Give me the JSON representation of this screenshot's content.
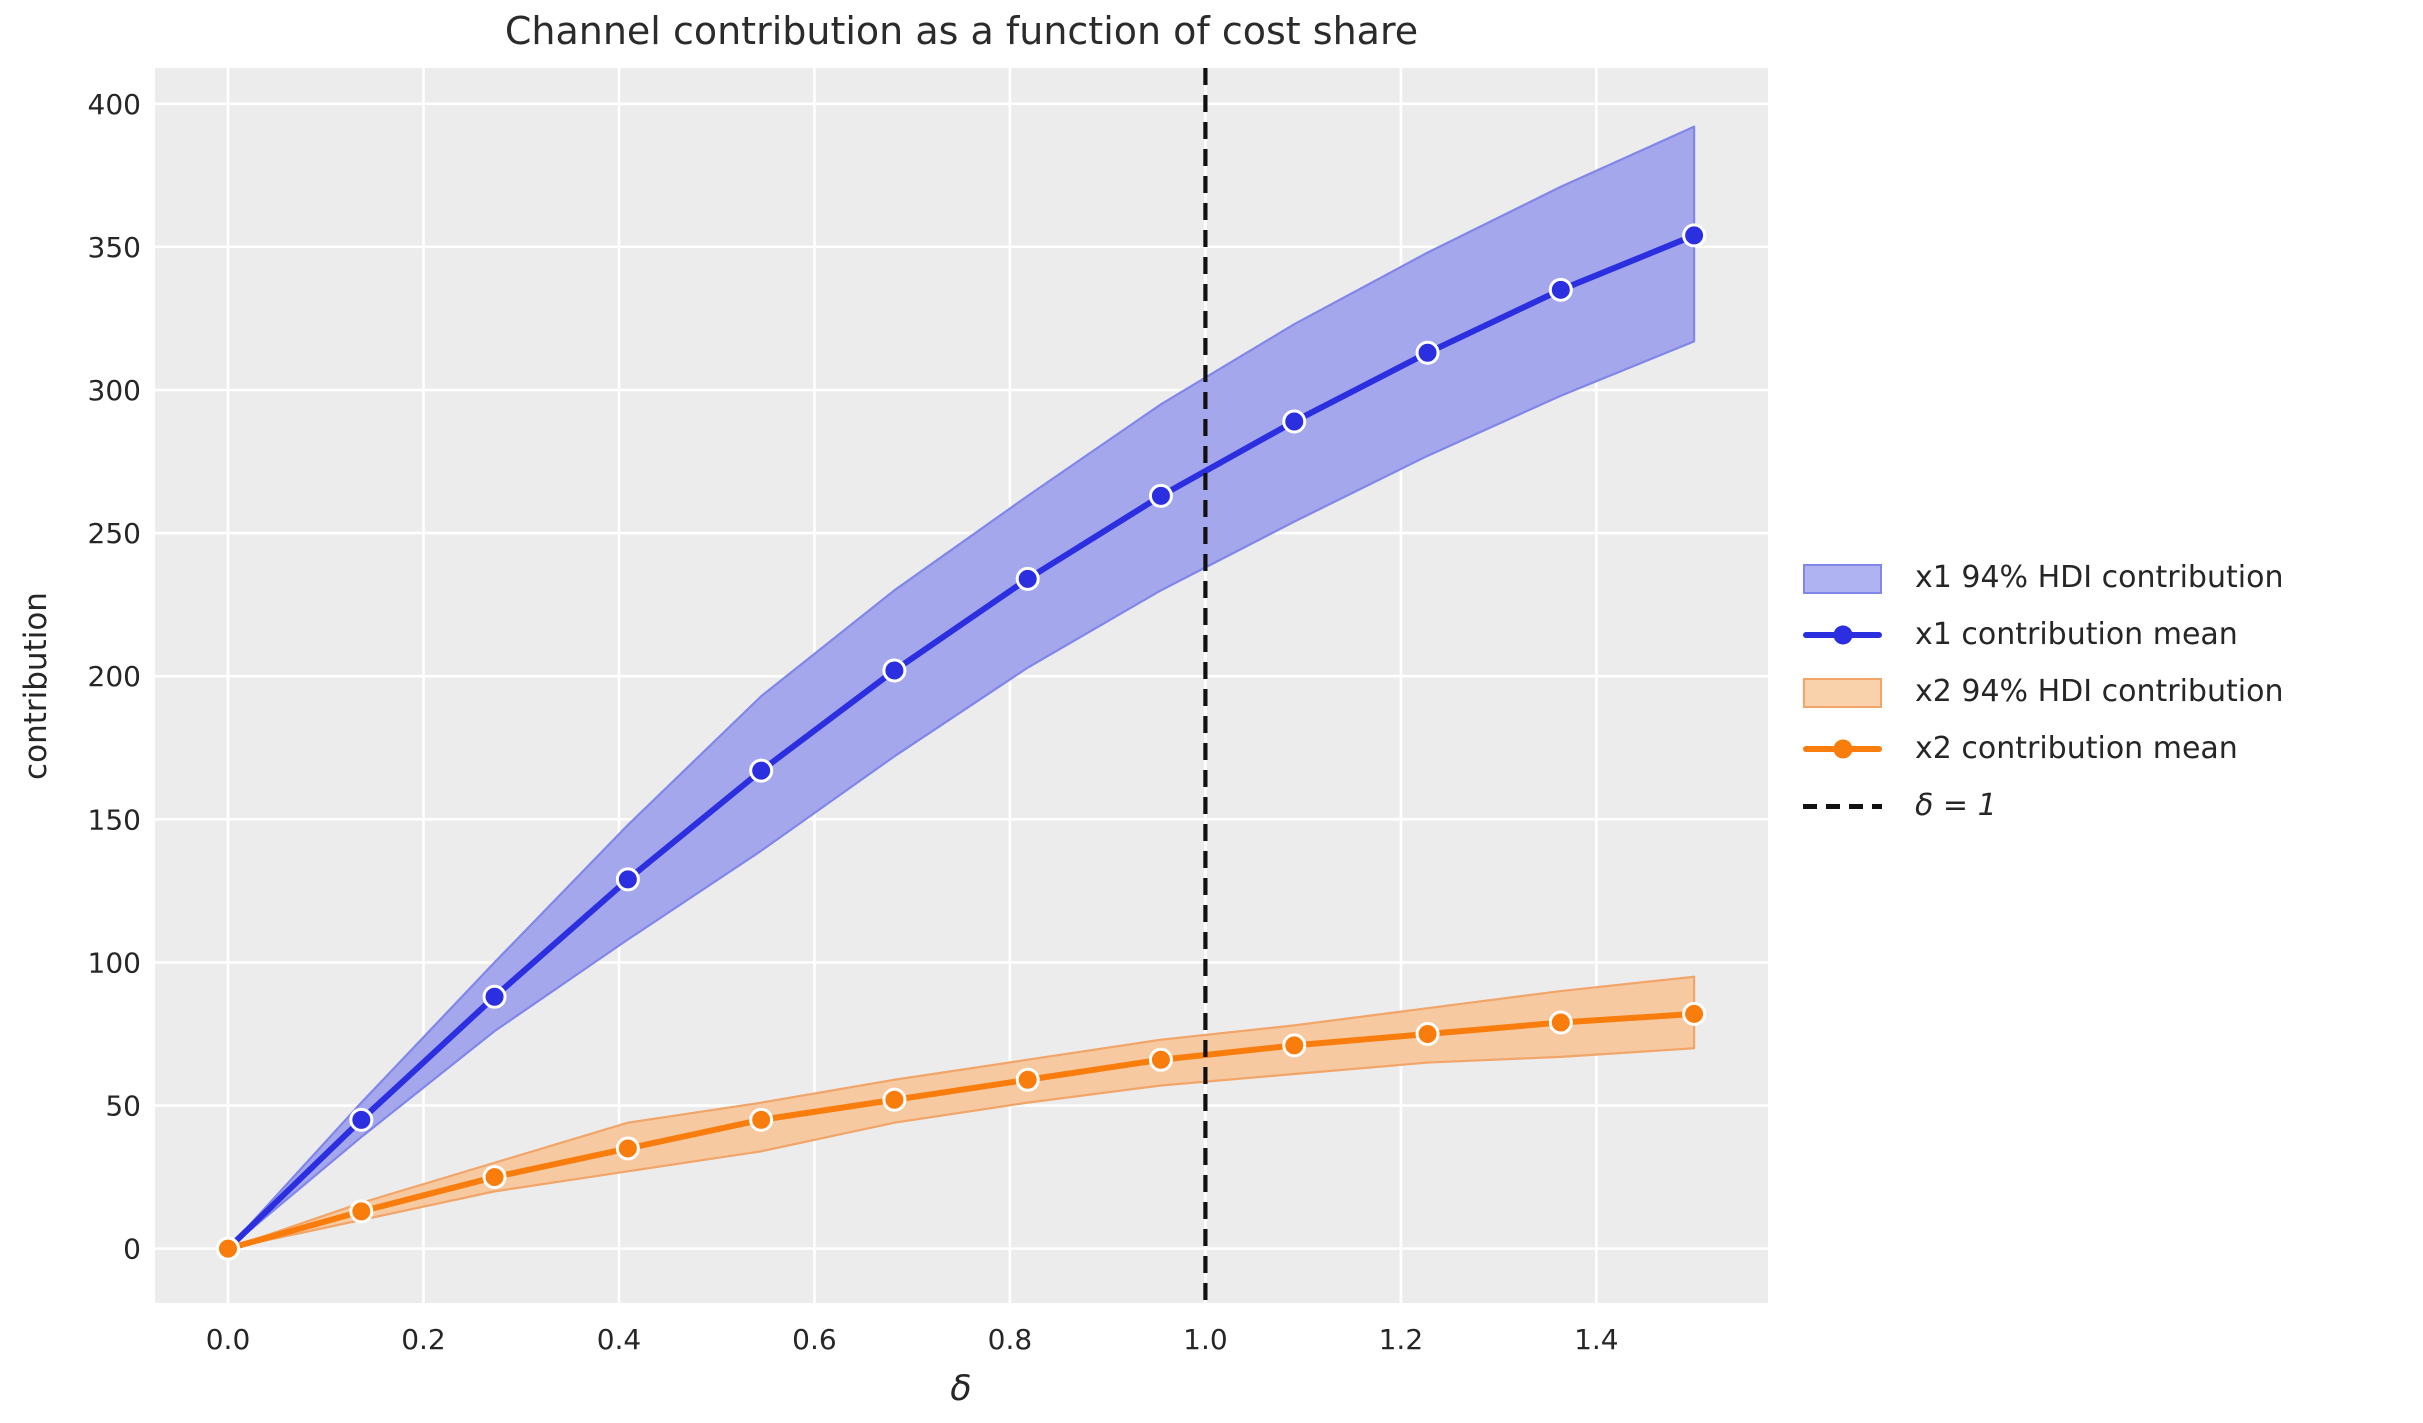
{
  "title": "Channel contribution as a function of cost share",
  "x_axis": {
    "label": "δ",
    "tick_labels": [
      "0.0",
      "0.2",
      "0.4",
      "0.6",
      "0.8",
      "1.0",
      "1.2",
      "1.4"
    ]
  },
  "y_axis": {
    "label": "contribution",
    "tick_labels": [
      "0",
      "50",
      "100",
      "150",
      "200",
      "250",
      "300",
      "350",
      "400"
    ]
  },
  "legend": {
    "entries": [
      {
        "label": "x1 94% HDI contribution",
        "sample": "band",
        "fill": "#b0b3f1",
        "edge": "#8186e9"
      },
      {
        "label": "x1 contribution mean",
        "sample": "line",
        "color": "#2b2fdf"
      },
      {
        "label": "x2 94% HDI contribution",
        "sample": "band",
        "fill": "#f9d2ac",
        "edge": "#f2a569"
      },
      {
        "label": "x2 contribution mean",
        "sample": "line",
        "color": "#f97d0c"
      },
      {
        "label": "δ = 1",
        "sample": "dashed",
        "color": "#111111"
      }
    ]
  },
  "colors": {
    "figure_bg": "#ffffff",
    "plot_bg": "#ececec",
    "grid": "#ffffff",
    "text": "#262626",
    "x1_line": "#2b2fdf",
    "x1_band_fill": "#a4a7ec",
    "x1_band_edge": "#8186e9",
    "x2_line": "#f97d0c",
    "x2_band_fill": "#f6c9a1",
    "x2_band_edge": "#f2a569",
    "vline": "#111111"
  },
  "chart_data": {
    "type": "line",
    "title": "Channel contribution as a function of cost share",
    "xlabel": "δ",
    "ylabel": "contribution",
    "x": [
      0.0,
      0.1364,
      0.2727,
      0.4091,
      0.5455,
      0.6818,
      0.8182,
      0.9545,
      1.0909,
      1.2273,
      1.3636,
      1.5
    ],
    "series": [
      {
        "name": "x1 94% HDI contribution",
        "type": "band",
        "lower": [
          0,
          39,
          76,
          108,
          139,
          172,
          203,
          230,
          254,
          277,
          298,
          317
        ],
        "upper": [
          0,
          51,
          100,
          148,
          193,
          230,
          263,
          295,
          323,
          348,
          371,
          392
        ]
      },
      {
        "name": "x1 contribution mean",
        "type": "line+markers",
        "values": [
          0,
          45,
          88,
          129,
          167,
          202,
          234,
          263,
          289,
          313,
          335,
          354
        ]
      },
      {
        "name": "x2 94% HDI contribution",
        "type": "band",
        "lower": [
          0,
          10,
          20,
          27,
          34,
          44,
          51,
          57,
          61,
          65,
          67,
          70
        ],
        "upper": [
          0,
          16,
          30,
          44,
          51,
          59,
          66,
          73,
          78,
          84,
          90,
          95
        ]
      },
      {
        "name": "x2 contribution mean",
        "type": "line+markers",
        "values": [
          0,
          13,
          25,
          35,
          45,
          52,
          59,
          66,
          71,
          75,
          79,
          82
        ]
      }
    ],
    "vline": {
      "x": 1.0,
      "label": "δ = 1",
      "style": "dashed"
    },
    "x_ticks": [
      0.0,
      0.2,
      0.4,
      0.6,
      0.8,
      1.0,
      1.2,
      1.4
    ],
    "y_ticks": [
      0,
      50,
      100,
      150,
      200,
      250,
      300,
      350,
      400
    ],
    "xlim": [
      -0.0747,
      1.5756
    ],
    "ylim": [
      -19.0,
      412.5
    ],
    "grid": true,
    "legend_position": "outside-right"
  }
}
